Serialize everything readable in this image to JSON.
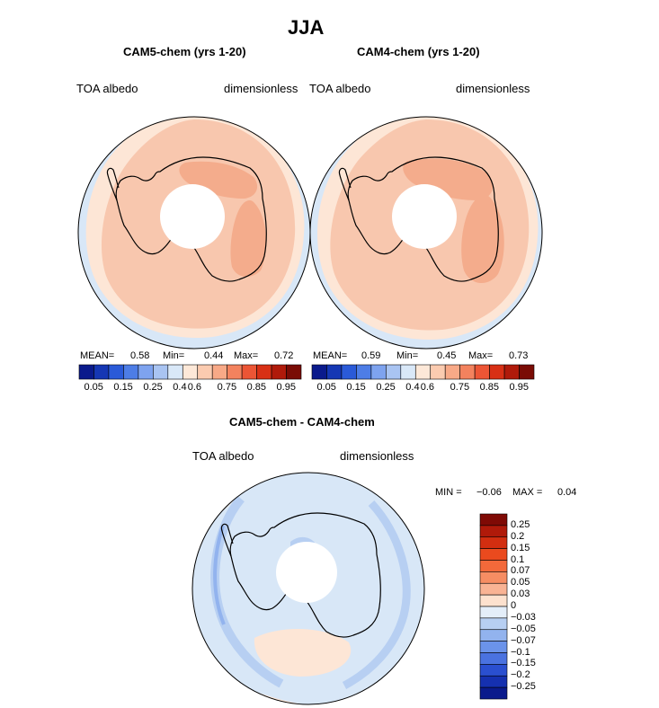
{
  "page_title": "JJA",
  "colors": {
    "coastline": "#000000",
    "background": "#ffffff"
  },
  "maps": [
    {
      "title": "CAM5-chem (yrs 1-20)",
      "left_label": "TOA albedo",
      "right_label": "dimensionless",
      "stats": {
        "mean_label": "MEAN=",
        "mean": "0.58",
        "min_label": "Min=",
        "min": "0.44",
        "max_label": "Max=",
        "max": "0.72"
      }
    },
    {
      "title": "CAM4-chem (yrs 1-20)",
      "left_label": "TOA albedo",
      "right_label": "dimensionless",
      "stats": {
        "mean_label": "MEAN=",
        "mean": "0.59",
        "min_label": "Min=",
        "min": "0.45",
        "max_label": "Max=",
        "max": "0.73"
      }
    }
  ],
  "difference_map": {
    "title": "CAM5-chem - CAM4-chem",
    "left_label": "TOA albedo",
    "right_label": "dimensionless",
    "min_label": "MIN =",
    "min": "−0.06",
    "max_label": "MAX =",
    "max": "0.04"
  },
  "chart_data": [
    {
      "type": "heatmap",
      "projection": "south polar stereographic",
      "title": "CAM5-chem (yrs 1-20)",
      "variable": "TOA albedo",
      "units": "dimensionless",
      "season": "JJA",
      "mean": 0.58,
      "min": 0.44,
      "max": 0.72,
      "colorbar": {
        "tick_labels": [
          "0.05",
          "0.15",
          "0.25",
          "0.4",
          "0.6",
          "0.75",
          "0.85",
          "0.95"
        ],
        "colors": [
          "#0a1a8c",
          "#1537b4",
          "#2a5ad8",
          "#4d7de6",
          "#7ea3ef",
          "#a9c4f2",
          "#d9e8f8",
          "#fde8d8",
          "#fbcbb0",
          "#f8a987",
          "#f3825e",
          "#ec5535",
          "#d83015",
          "#b01a0a",
          "#7a0c05"
        ]
      }
    },
    {
      "type": "heatmap",
      "projection": "south polar stereographic",
      "title": "CAM4-chem (yrs 1-20)",
      "variable": "TOA albedo",
      "units": "dimensionless",
      "season": "JJA",
      "mean": 0.59,
      "min": 0.45,
      "max": 0.73,
      "colorbar": {
        "tick_labels": [
          "0.05",
          "0.15",
          "0.25",
          "0.4",
          "0.6",
          "0.75",
          "0.85",
          "0.95"
        ],
        "colors": [
          "#0a1a8c",
          "#1537b4",
          "#2a5ad8",
          "#4d7de6",
          "#7ea3ef",
          "#a9c4f2",
          "#d9e8f8",
          "#fde8d8",
          "#fbcbb0",
          "#f8a987",
          "#f3825e",
          "#ec5535",
          "#d83015",
          "#b01a0a",
          "#7a0c05"
        ]
      }
    },
    {
      "type": "heatmap",
      "projection": "south polar stereographic",
      "title": "CAM5-chem - CAM4-chem",
      "variable": "TOA albedo",
      "units": "dimensionless",
      "season": "JJA",
      "min": -0.06,
      "max": 0.04,
      "colorbar": {
        "levels": [
          "0.25",
          "0.2",
          "0.15",
          "0.1",
          "0.07",
          "0.05",
          "0.03",
          "0",
          "−0.03",
          "−0.05",
          "−0.07",
          "−0.1",
          "−0.15",
          "−0.2",
          "−0.25"
        ],
        "colors": [
          "#7f0a05",
          "#b01a0a",
          "#d22e10",
          "#ea4a1e",
          "#f3693a",
          "#f68d63",
          "#f9b394",
          "#fde1ce",
          "#e4eef9",
          "#b7cff2",
          "#92b3ee",
          "#6b93ea",
          "#4a72e0",
          "#2a4fd0",
          "#1530b0",
          "#0a1a8c"
        ]
      }
    }
  ]
}
